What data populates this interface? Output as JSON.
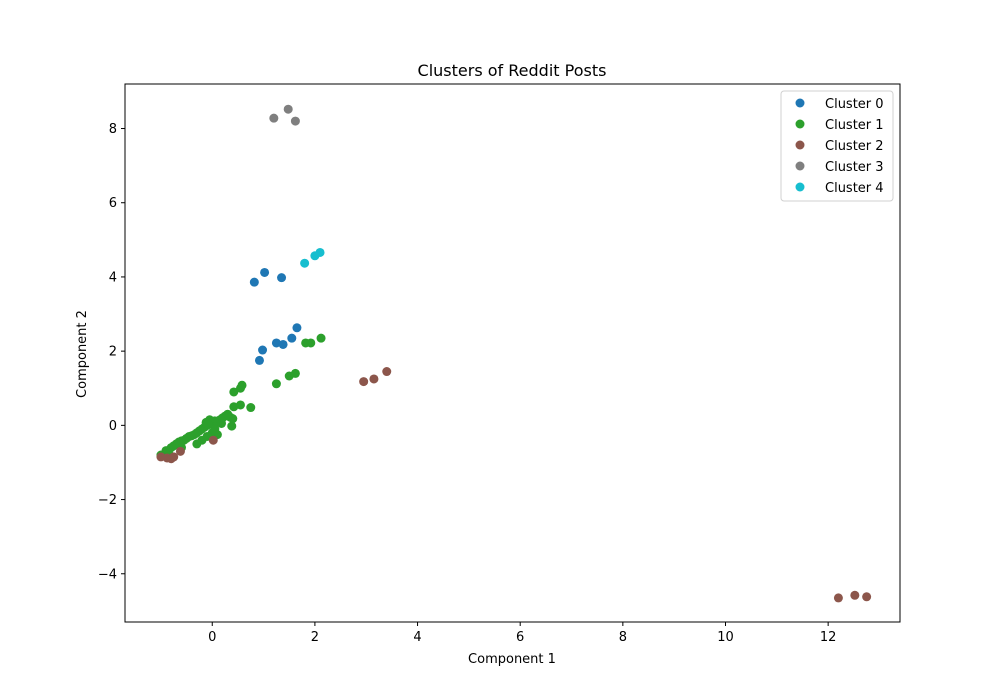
{
  "chart_data": {
    "type": "scatter",
    "title": "Clusters of Reddit Posts",
    "xlabel": "Component 1",
    "ylabel": "Component 2",
    "xlim": [
      -1.7,
      13.4
    ],
    "ylim": [
      -5.3,
      9.2
    ],
    "xticks": [
      0,
      2,
      4,
      6,
      8,
      10,
      12
    ],
    "yticks": [
      -4,
      -2,
      0,
      2,
      4,
      6,
      8
    ],
    "grid": false,
    "legend_position": "top-right",
    "series": [
      {
        "name": "Cluster 0",
        "color": "#1f77b4",
        "points": [
          [
            0.82,
            3.86
          ],
          [
            1.02,
            4.12
          ],
          [
            1.35,
            3.98
          ],
          [
            0.92,
            1.75
          ],
          [
            0.98,
            2.03
          ],
          [
            1.25,
            2.22
          ],
          [
            1.38,
            2.18
          ],
          [
            1.55,
            2.35
          ],
          [
            1.65,
            2.63
          ]
        ]
      },
      {
        "name": "Cluster 1",
        "color": "#2ca02c",
        "points": [
          [
            -1.0,
            -0.8
          ],
          [
            -0.9,
            -0.68
          ],
          [
            -0.85,
            -0.75
          ],
          [
            -0.8,
            -0.6
          ],
          [
            -0.75,
            -0.55
          ],
          [
            -0.7,
            -0.5
          ],
          [
            -0.65,
            -0.45
          ],
          [
            -0.6,
            -0.42
          ],
          [
            -0.55,
            -0.4
          ],
          [
            -0.5,
            -0.35
          ],
          [
            -0.45,
            -0.3
          ],
          [
            -0.4,
            -0.28
          ],
          [
            -0.35,
            -0.25
          ],
          [
            -0.3,
            -0.2
          ],
          [
            -0.25,
            -0.15
          ],
          [
            -0.2,
            -0.1
          ],
          [
            -0.15,
            -0.05
          ],
          [
            -0.1,
            0.0
          ],
          [
            -0.05,
            0.05
          ],
          [
            0.0,
            0.08
          ],
          [
            0.05,
            0.12
          ],
          [
            0.1,
            0.1
          ],
          [
            -0.12,
            0.08
          ],
          [
            -0.05,
            0.15
          ],
          [
            0.15,
            0.15
          ],
          [
            0.2,
            0.2
          ],
          [
            0.25,
            0.25
          ],
          [
            0.3,
            0.3
          ],
          [
            0.35,
            0.22
          ],
          [
            0.4,
            0.18
          ],
          [
            -0.3,
            -0.5
          ],
          [
            -0.1,
            -0.3
          ],
          [
            0.0,
            -0.2
          ],
          [
            0.1,
            -0.25
          ],
          [
            0.38,
            -0.02
          ],
          [
            -0.6,
            -0.6
          ],
          [
            -0.2,
            -0.4
          ],
          [
            0.05,
            -0.1
          ],
          [
            -0.08,
            0.02
          ],
          [
            0.18,
            0.05
          ],
          [
            0.42,
            0.5
          ],
          [
            0.55,
            0.55
          ],
          [
            0.75,
            0.48
          ],
          [
            0.42,
            0.9
          ],
          [
            0.55,
            1.0
          ],
          [
            0.58,
            1.08
          ],
          [
            1.25,
            1.12
          ],
          [
            1.5,
            1.33
          ],
          [
            1.62,
            1.4
          ],
          [
            1.82,
            2.22
          ],
          [
            1.92,
            2.22
          ],
          [
            2.12,
            2.35
          ]
        ]
      },
      {
        "name": "Cluster 2",
        "color": "#8c564b",
        "points": [
          [
            -1.0,
            -0.85
          ],
          [
            -0.88,
            -0.88
          ],
          [
            -0.8,
            -0.9
          ],
          [
            -0.75,
            -0.85
          ],
          [
            -0.62,
            -0.7
          ],
          [
            0.02,
            -0.4
          ],
          [
            2.95,
            1.18
          ],
          [
            3.15,
            1.25
          ],
          [
            3.4,
            1.45
          ],
          [
            12.2,
            -4.65
          ],
          [
            12.52,
            -4.58
          ],
          [
            12.75,
            -4.62
          ]
        ]
      },
      {
        "name": "Cluster 3",
        "color": "#7f7f7f",
        "points": [
          [
            1.2,
            8.28
          ],
          [
            1.48,
            8.52
          ],
          [
            1.62,
            8.2
          ]
        ]
      },
      {
        "name": "Cluster 4",
        "color": "#17becf",
        "points": [
          [
            1.8,
            4.37
          ],
          [
            2.0,
            4.57
          ],
          [
            2.1,
            4.66
          ]
        ]
      }
    ]
  }
}
